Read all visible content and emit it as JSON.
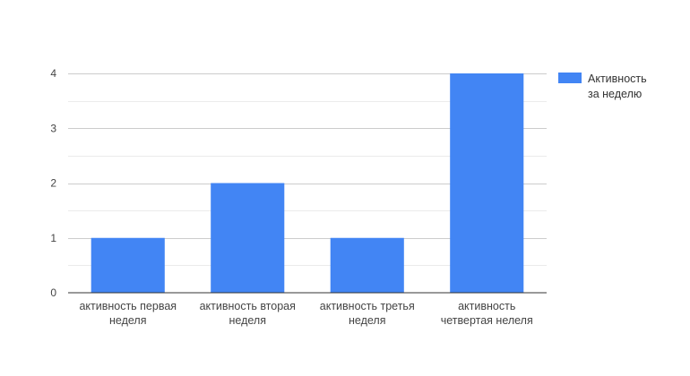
{
  "chart_data": {
    "type": "bar",
    "categories": [
      [
        "активность первая",
        "неделя"
      ],
      [
        "активность вторая",
        "неделя"
      ],
      [
        "активность третья",
        "неделя"
      ],
      [
        "активность",
        "четвертая нелеля"
      ]
    ],
    "series": [
      {
        "name": [
          "Активность",
          "за неделю"
        ],
        "values": [
          1,
          2,
          1,
          4
        ],
        "color": "#4285f4"
      }
    ],
    "yticks": [
      "0",
      "1",
      "2",
      "3",
      "4"
    ],
    "ylim": [
      0,
      4
    ],
    "grid": true,
    "minor_grid": true,
    "legend_position": "right"
  }
}
